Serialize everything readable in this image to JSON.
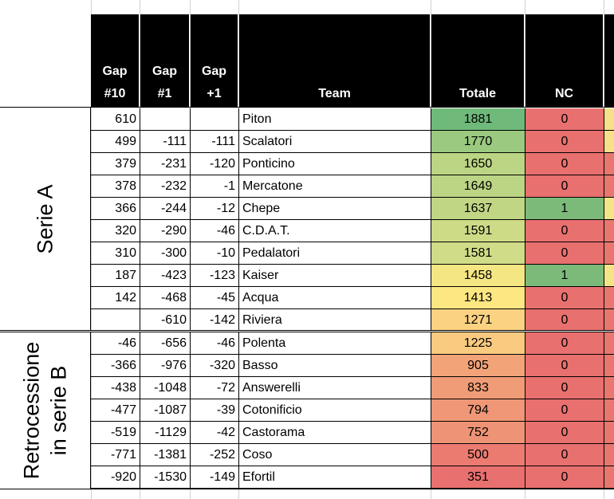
{
  "headers": {
    "gap10": [
      "Gap",
      "#10"
    ],
    "gap1": [
      "Gap",
      "#1"
    ],
    "gapplus1": [
      "Gap",
      "+1"
    ],
    "team": "Team",
    "totale": "Totale",
    "nc": "NC"
  },
  "groups": {
    "serie_a": "Serie A",
    "retrocessione": [
      "Retrocessione",
      "in serie B"
    ]
  },
  "colors": {
    "header_bg": "#000000",
    "nc_zero": "#e8706e",
    "nc_one": "#7cba7a"
  },
  "rows": [
    {
      "gap10": "610",
      "gap1": "",
      "gapp1": "",
      "team": "Piton",
      "totale": "1881",
      "nc": "0",
      "tot_color": "#6fb97a",
      "nc_color": "#e8706e"
    },
    {
      "gap10": "499",
      "gap1": "-111",
      "gapp1": "-111",
      "team": "Scalatori",
      "totale": "1770",
      "nc": "0",
      "tot_color": "#9ac97f",
      "nc_color": "#e8706e"
    },
    {
      "gap10": "379",
      "gap1": "-231",
      "gapp1": "-120",
      "team": "Ponticino",
      "totale": "1650",
      "nc": "0",
      "tot_color": "#bcd584",
      "nc_color": "#e8706e"
    },
    {
      "gap10": "378",
      "gap1": "-232",
      "gapp1": "-1",
      "team": "Mercatone",
      "totale": "1649",
      "nc": "0",
      "tot_color": "#bcd584",
      "nc_color": "#e8706e"
    },
    {
      "gap10": "366",
      "gap1": "-244",
      "gapp1": "-12",
      "team": "Chepe",
      "totale": "1637",
      "nc": "1",
      "tot_color": "#c0d685",
      "nc_color": "#7cba7a"
    },
    {
      "gap10": "320",
      "gap1": "-290",
      "gapp1": "-46",
      "team": "C.D.A.T.",
      "totale": "1591",
      "nc": "0",
      "tot_color": "#cddb87",
      "nc_color": "#e8706e"
    },
    {
      "gap10": "310",
      "gap1": "-300",
      "gapp1": "-10",
      "team": "Pedalatori",
      "totale": "1581",
      "nc": "0",
      "tot_color": "#d0dc87",
      "nc_color": "#e8706e"
    },
    {
      "gap10": "187",
      "gap1": "-423",
      "gapp1": "-123",
      "team": "Kaiser",
      "totale": "1458",
      "nc": "1",
      "tot_color": "#f5e684",
      "nc_color": "#7cba7a"
    },
    {
      "gap10": "142",
      "gap1": "-468",
      "gapp1": "-45",
      "team": "Acqua",
      "totale": "1413",
      "nc": "0",
      "tot_color": "#fde782",
      "nc_color": "#e8706e"
    },
    {
      "gap10": "",
      "gap1": "-610",
      "gapp1": "-142",
      "team": "Riviera",
      "totale": "1271",
      "nc": "0",
      "tot_color": "#fad281",
      "nc_color": "#e8706e"
    },
    {
      "gap10": "-46",
      "gap1": "-656",
      "gapp1": "-46",
      "team": "Polenta",
      "totale": "1225",
      "nc": "0",
      "tot_color": "#f9ca7f",
      "nc_color": "#e8706e"
    },
    {
      "gap10": "-366",
      "gap1": "-976",
      "gapp1": "-320",
      "team": "Basso",
      "totale": "905",
      "nc": "0",
      "tot_color": "#f2a378",
      "nc_color": "#e8706e"
    },
    {
      "gap10": "-438",
      "gap1": "-1048",
      "gapp1": "-72",
      "team": "Answerelli",
      "totale": "833",
      "nc": "0",
      "tot_color": "#f09c77",
      "nc_color": "#e8706e"
    },
    {
      "gap10": "-477",
      "gap1": "-1087",
      "gapp1": "-39",
      "team": "Cotonificio",
      "totale": "794",
      "nc": "0",
      "tot_color": "#ef9776",
      "nc_color": "#e8706e"
    },
    {
      "gap10": "-519",
      "gap1": "-1129",
      "gapp1": "-42",
      "team": "Castorama",
      "totale": "752",
      "nc": "0",
      "tot_color": "#ee9375",
      "nc_color": "#e8706e"
    },
    {
      "gap10": "-771",
      "gap1": "-1381",
      "gapp1": "-252",
      "team": "Coso",
      "totale": "500",
      "nc": "0",
      "tot_color": "#eb7b71",
      "nc_color": "#e8706e"
    },
    {
      "gap10": "-920",
      "gap1": "-1530",
      "gapp1": "-149",
      "team": "Efortil",
      "totale": "351",
      "nc": "0",
      "tot_color": "#e8706e",
      "nc_color": "#e8706e"
    }
  ]
}
